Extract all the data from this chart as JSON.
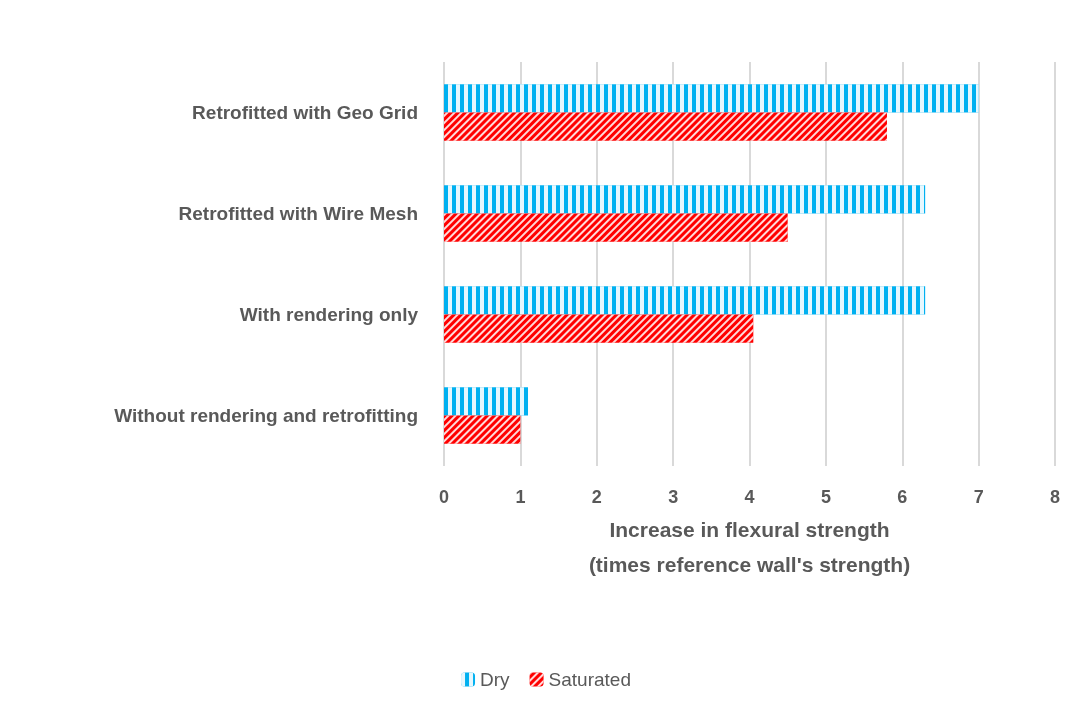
{
  "chart_data": {
    "type": "bar",
    "orientation": "horizontal",
    "xlabel": "Increase in flexural strength\n(times reference wall's strength)",
    "categories": [
      "Retrofitted with Geo Grid",
      "Retrofitted with Wire Mesh",
      "With rendering only",
      "Without rendering and retrofitting"
    ],
    "series": [
      {
        "name": "Dry",
        "color": "#00b0f0",
        "values": [
          7.0,
          6.3,
          6.3,
          1.1
        ]
      },
      {
        "name": "Saturated",
        "color": "#ff0000",
        "values": [
          5.8,
          4.5,
          4.05,
          1.0
        ]
      }
    ],
    "xlim": [
      0,
      8
    ],
    "xticks": [
      0,
      1,
      2,
      3,
      4,
      5,
      6,
      7,
      8
    ],
    "grid": "x",
    "legend": "bottom"
  }
}
